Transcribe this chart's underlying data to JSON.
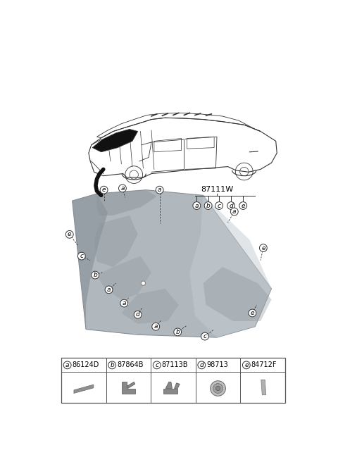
{
  "bg_color": "#ffffff",
  "part_label": "87111W",
  "parts": [
    {
      "letter": "a",
      "code": "86124D"
    },
    {
      "letter": "b",
      "code": "87864B"
    },
    {
      "letter": "c",
      "code": "87113B"
    },
    {
      "letter": "d",
      "code": "98713"
    },
    {
      "letter": "e",
      "code": "84712F"
    }
  ],
  "callout_letters": [
    "a",
    "b",
    "c",
    "d",
    "e"
  ],
  "line_color": "#333333",
  "circle_color": "#333333",
  "glass_base": "#adb5bd",
  "glass_dark": "#7a878f",
  "glass_light": "#c8d0d6"
}
